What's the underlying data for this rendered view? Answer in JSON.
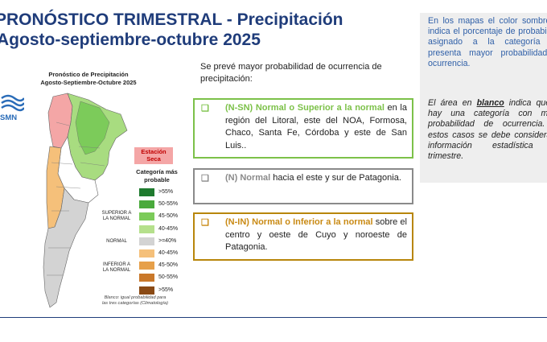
{
  "title": {
    "line1": "PRONÓSTICO TRIMESTRAL - Precipitación",
    "line2": "Agosto-septiembre-octubre 2025"
  },
  "intro": "Se prevé mayor probabilidad de ocurrencia de precipitación:",
  "boxes": {
    "green": {
      "bullet": "❑",
      "highlight": "(N-SN) Normal o Superior a la normal",
      "text": " en la región del Litoral, este del NOA, Formosa, Chaco, Santa Fe, Córdoba y este de San Luis..",
      "color": "#7cc149"
    },
    "gray": {
      "bullet": "❑",
      "highlight": "(N) Normal",
      "text": " hacia el este y sur de Patagonia.",
      "color": "#8a8a8a"
    },
    "brown": {
      "bullet": "❑",
      "highlight": "(N-IN) Normal o Inferior a la normal",
      "text": " sobre el centro y oeste de Cuyo y noroeste de Patagonia.",
      "color": "#c98a14"
    }
  },
  "sidebar": {
    "top": "En los mapas el color sombreado indica el porcentaje de probabilidad asignado a la categoría que presenta mayor probabilidad de ocurrencia.",
    "bottom_pre": "El área en ",
    "bottom_em": "blanco",
    "bottom_post": " indica que no hay una categoría con mayor probabilidad de ocurrencia. En estos casos se debe considerar la información estadística del trimestre."
  },
  "map": {
    "title_line1": "Pronóstico de Precipitación",
    "title_line2": "Agosto-Septiembre-Octubre 2025",
    "logo_text": "SMN",
    "estacion_line1": "Estación",
    "estacion_line2": "Seca",
    "legend_title_line1": "Categoría más",
    "legend_title_line2": "probable",
    "groups": {
      "superior_line1": "SUPERIOR A",
      "superior_line2": "LA NORMAL",
      "normal": "NORMAL",
      "inferior_line1": "INFERIOR A",
      "inferior_line2": "LA NORMAL"
    },
    "legend": [
      {
        "label": ">55%",
        "color": "#1e7a2e"
      },
      {
        "label": "50-55%",
        "color": "#4aaa3c"
      },
      {
        "label": "45-50%",
        "color": "#7ccb5a"
      },
      {
        "label": "40-45%",
        "color": "#b5e08c"
      },
      {
        "label": ">=40%",
        "color": "#d3d3d3"
      },
      {
        "label": "40-45%",
        "color": "#f5c07a"
      },
      {
        "label": "45-50%",
        "color": "#e6a04a"
      },
      {
        "label": "50-55%",
        "color": "#c9782a"
      },
      {
        "label": ">55%",
        "color": "#8a4a15"
      }
    ],
    "footnote_line1": "Blanco: igual probabilidad para",
    "footnote_line2": "las tres categorías (Climatología)"
  }
}
